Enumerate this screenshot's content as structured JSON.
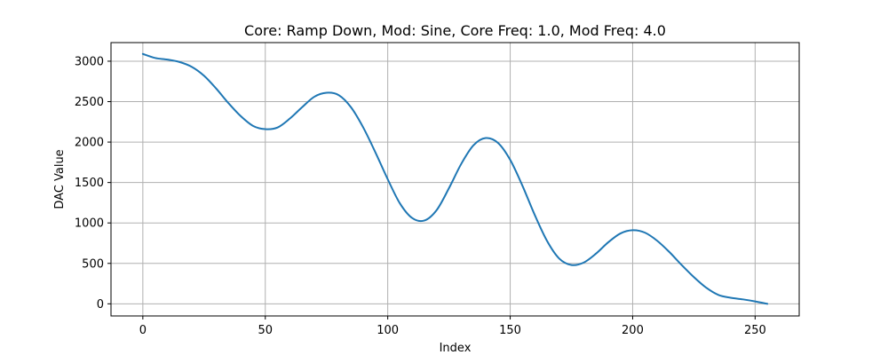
{
  "chart_data": {
    "type": "line",
    "title": "Core: Ramp Down, Mod: Sine, Core Freq: 1.0, Mod Freq: 4.0",
    "xlabel": "Index",
    "ylabel": "DAC Value",
    "xlim": [
      -13,
      268
    ],
    "ylim": [
      -150,
      3230
    ],
    "xticks": [
      0,
      50,
      100,
      150,
      200,
      250
    ],
    "yticks": [
      0,
      500,
      1000,
      1500,
      2000,
      2500,
      3000
    ],
    "grid": true,
    "series": [
      {
        "color": "#1f77b4",
        "x": [
          0,
          5,
          10,
          15,
          20,
          25,
          30,
          35,
          40,
          45,
          50,
          55,
          60,
          65,
          70,
          75,
          80,
          85,
          90,
          95,
          100,
          105,
          110,
          115,
          120,
          125,
          130,
          135,
          140,
          145,
          150,
          155,
          160,
          165,
          170,
          175,
          180,
          185,
          190,
          195,
          200,
          205,
          210,
          215,
          220,
          225,
          230,
          235,
          240,
          245,
          250,
          255
        ],
        "y": [
          3090,
          3040,
          3020,
          2990,
          2930,
          2820,
          2660,
          2480,
          2320,
          2200,
          2160,
          2180,
          2290,
          2430,
          2560,
          2610,
          2580,
          2430,
          2180,
          1870,
          1540,
          1240,
          1060,
          1030,
          1160,
          1430,
          1730,
          1960,
          2050,
          1990,
          1780,
          1460,
          1100,
          780,
          560,
          480,
          510,
          620,
          760,
          870,
          910,
          880,
          780,
          640,
          480,
          330,
          200,
          110,
          75,
          55,
          30,
          0
        ]
      }
    ]
  }
}
